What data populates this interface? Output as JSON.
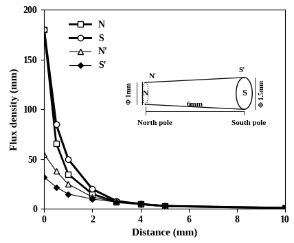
{
  "chart_data": {
    "type": "line",
    "x_label": "Distance (mm)",
    "y_label": "Flux density (mm)",
    "x": [
      0,
      0.5,
      1,
      2,
      3,
      4,
      5,
      10
    ],
    "series": [
      {
        "name": "N",
        "color": "#000000",
        "marker": "square",
        "line_style": "solid",
        "values": [
          180,
          66,
          35,
          15,
          7,
          5,
          3,
          1
        ]
      },
      {
        "name": "S",
        "color": "#000000",
        "marker": "circle",
        "line_style": "solid",
        "values": [
          180,
          85,
          50,
          20,
          8,
          5,
          3,
          1
        ]
      },
      {
        "name": "N'",
        "color": "#000000",
        "marker": "triangle",
        "line_style": "solid",
        "values": [
          55,
          38,
          25,
          12,
          7,
          5,
          3,
          1
        ]
      },
      {
        "name": "S'",
        "color": "#000000",
        "marker": "diamond",
        "line_style": "solid",
        "values": [
          32,
          22,
          15,
          10,
          7,
          5,
          3,
          1
        ]
      }
    ],
    "xlim": [
      0,
      10
    ],
    "xticks": [
      0,
      2,
      4,
      6,
      8,
      10
    ],
    "ylim": [
      0,
      200
    ],
    "yticks": [
      0,
      50,
      100,
      150,
      200
    ],
    "grid": false,
    "legend": "upper left",
    "annotations": [
      "N'",
      "N",
      "S'",
      "S",
      "Φ 1mm",
      "Φ 1.5mm",
      "North pole",
      "6mm",
      "South pole"
    ]
  }
}
